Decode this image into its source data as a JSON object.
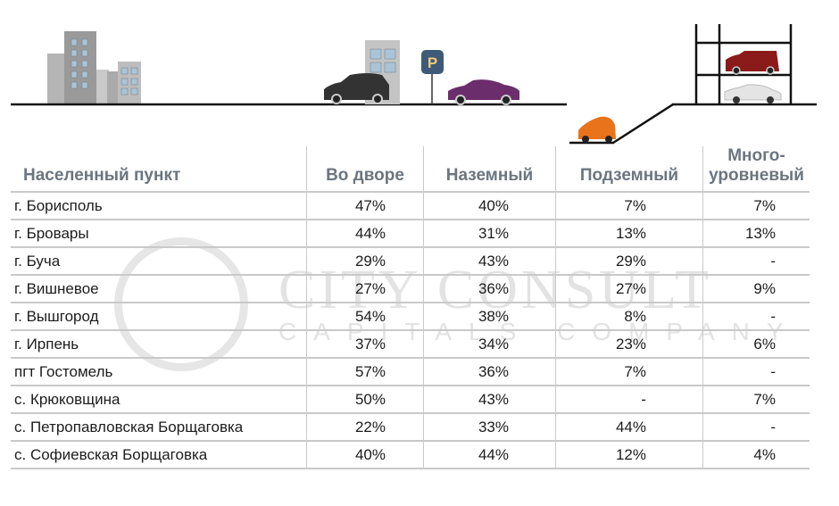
{
  "watermark": {
    "line1": "CITY CONSULT",
    "line2": "CAPITALS COMPANY"
  },
  "parking_sign": "P",
  "colors": {
    "header_text": "#6b7580",
    "grid": "#c9c9c9",
    "car_black": "#333333",
    "car_purple": "#6b2d6b",
    "car_red": "#8b1a1a",
    "car_white": "#e8e8e8",
    "car_orange": "#e8731a",
    "sign": "#3d5a78"
  },
  "table": {
    "headers": [
      "Населенный пункт",
      "Во дворе",
      "Наземный",
      "Подземный",
      "Много-уровневый"
    ],
    "header_multi": [
      "Много-",
      "уровневый"
    ],
    "rows": [
      [
        "г. Борисполь",
        "47%",
        "40%",
        "7%",
        "7%"
      ],
      [
        "г. Бровары",
        "44%",
        "31%",
        "13%",
        "13%"
      ],
      [
        "г. Буча",
        "29%",
        "43%",
        "29%",
        "-"
      ],
      [
        "г. Вишневое",
        "27%",
        "36%",
        "27%",
        "9%"
      ],
      [
        "г. Вышгород",
        "54%",
        "38%",
        "8%",
        "-"
      ],
      [
        "г. Ирпень",
        "37%",
        "34%",
        "23%",
        "6%"
      ],
      [
        "пгт Гостомель",
        "57%",
        "36%",
        "7%",
        "-"
      ],
      [
        "с. Крюковщина",
        "50%",
        "43%",
        "-",
        "7%"
      ],
      [
        "с. Петропавловская Борщаговка",
        "22%",
        "33%",
        "44%",
        "-"
      ],
      [
        "с. Софиевская Борщаговка",
        "40%",
        "44%",
        "12%",
        "4%"
      ]
    ]
  }
}
